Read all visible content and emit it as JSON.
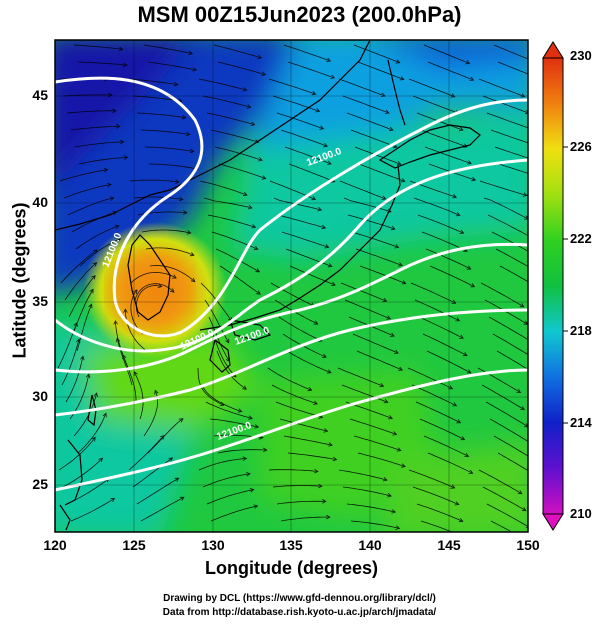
{
  "title": "MSM 00Z15Jun2023 (200.0hPa)",
  "xlabel": "Longitude (degrees)",
  "ylabel": "Latitude  (degrees)",
  "x_ticks": [
    "120",
    "125",
    "130",
    "135",
    "140",
    "145",
    "150"
  ],
  "y_ticks": [
    "25",
    "30",
    "35",
    "40",
    "45"
  ],
  "colorbar": {
    "ticks": [
      "230",
      "226",
      "222",
      "218",
      "214",
      "210"
    ],
    "range": [
      210,
      230
    ]
  },
  "contour_labels": [
    "12100.0",
    "12100.0",
    "12100.0",
    "12100.0",
    "12100.0"
  ],
  "credits": [
    "Drawing by DCL (https://www.gfd-dennou.org/library/dcl/)",
    "Data from http://database.rish.kyoto-u.ac.jp/arch/jmadata/"
  ],
  "chart_data": {
    "type": "heatmap",
    "title": "MSM 00Z15Jun2023 (200.0hPa)",
    "xlabel": "Longitude (degrees)",
    "ylabel": "Latitude  (degrees)",
    "xlim": [
      120,
      150
    ],
    "ylim": [
      22.4,
      47.6
    ],
    "colorbar_range": [
      210,
      230
    ],
    "colorbar_ticks": [
      210,
      214,
      218,
      222,
      226,
      230
    ],
    "overlays": [
      "streamlines",
      "geopotential height contours",
      "coastlines"
    ],
    "contour_label_text": "12100.0"
  }
}
